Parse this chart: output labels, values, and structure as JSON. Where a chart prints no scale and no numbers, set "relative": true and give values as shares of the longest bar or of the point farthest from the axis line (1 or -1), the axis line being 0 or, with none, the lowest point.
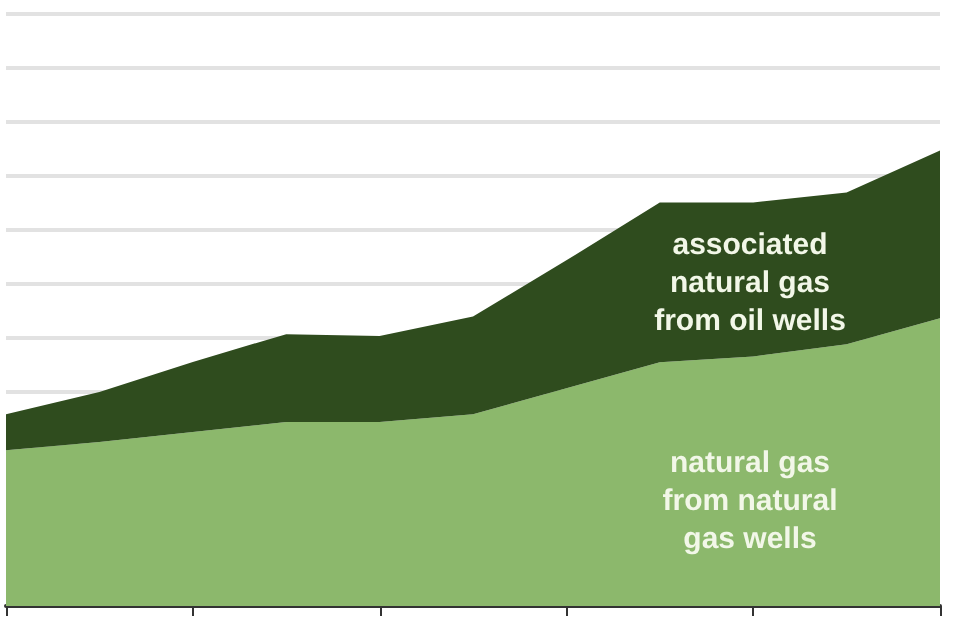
{
  "chart_data": {
    "type": "area",
    "relative": true,
    "stacked": true,
    "grid": "y",
    "categories": [
      null,
      null,
      null,
      null,
      null,
      null,
      null,
      null,
      null,
      null,
      null
    ],
    "series": [
      {
        "name": "natural gas\nfrom natural\ngas wells",
        "color": "#8cb86c",
        "values": [
          0.342,
          0.36,
          0.382,
          0.404,
          0.404,
          0.421,
          0.478,
          0.535,
          0.548,
          0.575,
          0.632
        ]
      },
      {
        "name": "associated\nnatural gas\nfrom oil wells",
        "color": "#2f4c1e",
        "values": [
          0.079,
          0.11,
          0.154,
          0.193,
          0.189,
          0.215,
          0.281,
          0.351,
          0.338,
          0.333,
          0.368
        ]
      }
    ]
  }
}
